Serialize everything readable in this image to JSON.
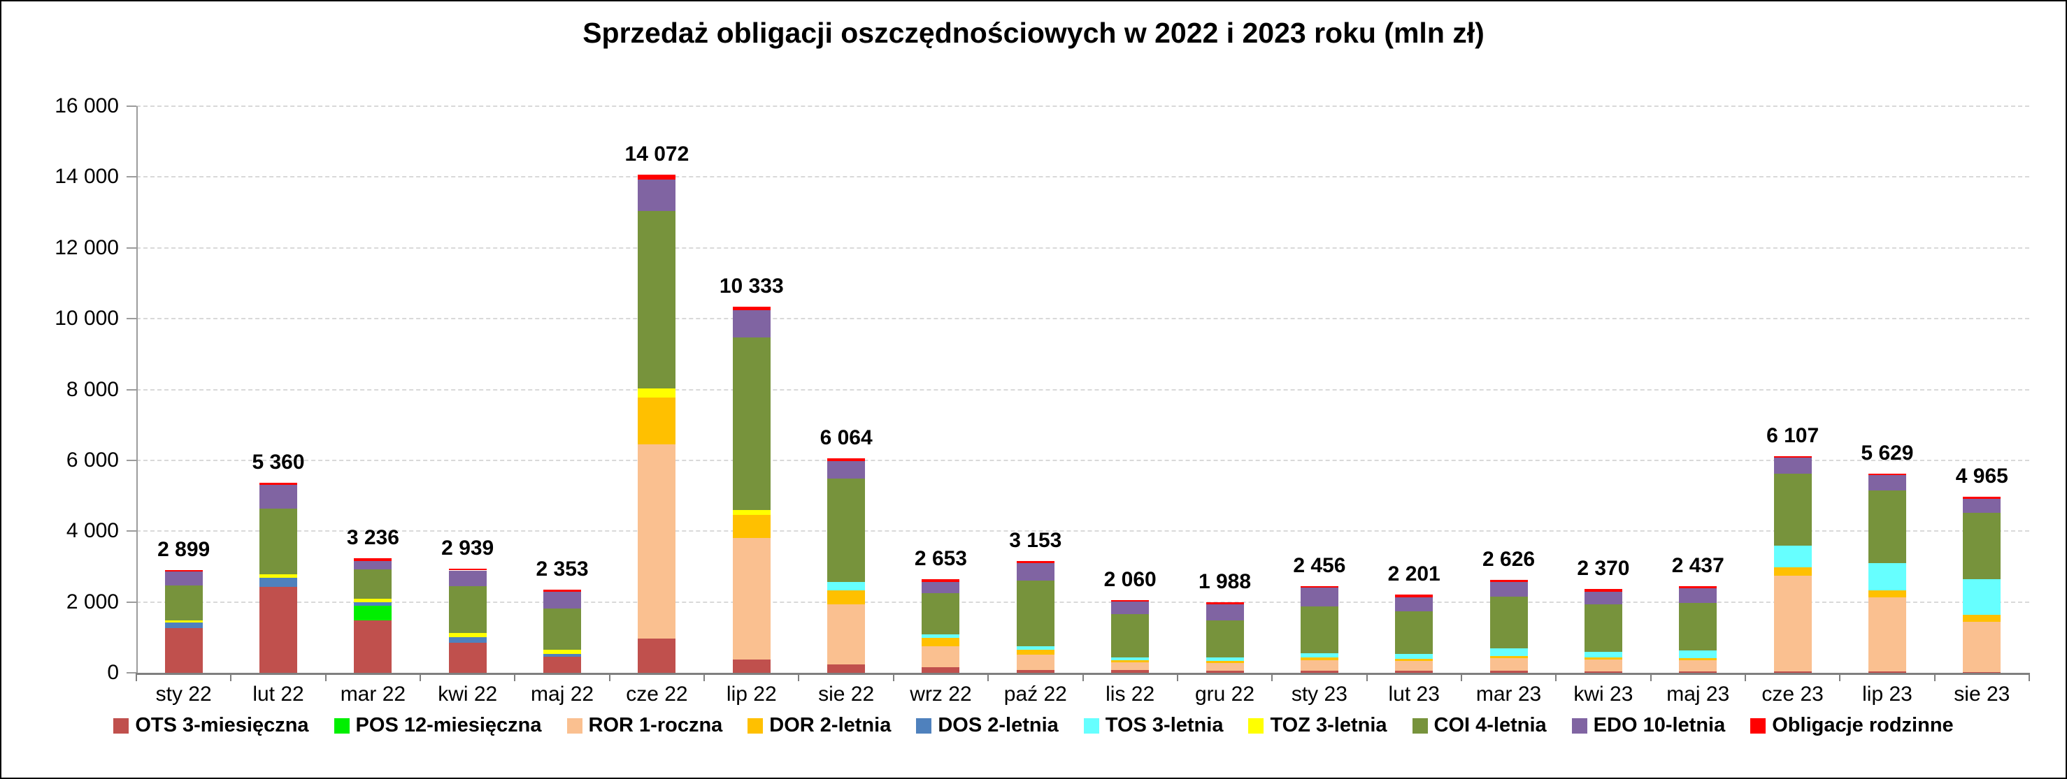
{
  "title": "Sprzedaż obligacji oszczędnościowych w 2022 i 2023 roku (mln zł)",
  "chart_data": {
    "type": "bar",
    "stacked": true,
    "title": "Sprzedaż obligacji oszczędnościowych w 2022 i 2023 roku (mln zł)",
    "xlabel": "",
    "ylabel": "",
    "ylim": [
      0,
      16000
    ],
    "y_tick_step": 2000,
    "y_tick_labels": [
      "0",
      "2 000",
      "4 000",
      "6 000",
      "8 000",
      "10 000",
      "12 000",
      "14 000",
      "16 000"
    ],
    "grid": "horizontal-dashed",
    "legend_position": "bottom",
    "categories": [
      "sty 22",
      "lut 22",
      "mar 22",
      "kwi 22",
      "maj 22",
      "cze 22",
      "lip 22",
      "sie 22",
      "wrz 22",
      "paź 22",
      "lis 22",
      "gru 22",
      "sty 23",
      "lut 23",
      "mar 23",
      "kwi 23",
      "maj 23",
      "cze 23",
      "lip 23",
      "sie 23"
    ],
    "totals": [
      2899,
      5360,
      3236,
      2939,
      2353,
      14072,
      10333,
      6064,
      2653,
      3153,
      2060,
      1988,
      2456,
      2201,
      2626,
      2370,
      2437,
      6107,
      5629,
      4965
    ],
    "total_labels": [
      "2 899",
      "5 360",
      "3 236",
      "2 939",
      "2 353",
      "14 072",
      "10 333",
      "6 064",
      "2 653",
      "3 153",
      "2 060",
      "1 988",
      "2 456",
      "2 201",
      "2 626",
      "2 370",
      "2 437",
      "6 107",
      "5 629",
      "4 965"
    ],
    "series": [
      {
        "name": "OTS 3-miesięczna",
        "color": "#c0504d",
        "values": [
          1270,
          2420,
          1480,
          851,
          446,
          960,
          381,
          230,
          164,
          85,
          85,
          65,
          65,
          65,
          55,
          40,
          35,
          30,
          30,
          25
        ]
      },
      {
        "name": "POS 12-miesięczna",
        "color": "#00ef00",
        "values": [
          0,
          0,
          414,
          0,
          0,
          0,
          0,
          0,
          0,
          0,
          0,
          0,
          0,
          0,
          0,
          0,
          0,
          0,
          0,
          0
        ]
      },
      {
        "name": "ROR 1-roczna",
        "color": "#fac090",
        "values": [
          0,
          0,
          0,
          0,
          0,
          5482,
          3426,
          1698,
          590,
          428,
          217,
          204,
          284,
          270,
          360,
          330,
          315,
          2705,
          2105,
          1425
        ]
      },
      {
        "name": "DOR 2-letnia",
        "color": "#ffc000",
        "values": [
          0,
          0,
          0,
          0,
          0,
          1340,
          652,
          407,
          230,
          145,
          47,
          66,
          79,
          66,
          66,
          60,
          60,
          245,
          197,
          185
        ]
      },
      {
        "name": "DOS 2-letnia",
        "color": "#4f81bd",
        "values": [
          145,
          270,
          99,
          152,
          85,
          0,
          0,
          0,
          0,
          0,
          0,
          0,
          0,
          0,
          0,
          0,
          0,
          0,
          0,
          0
        ]
      },
      {
        "name": "TOS 3-letnia",
        "color": "#66ffff",
        "values": [
          0,
          0,
          0,
          0,
          0,
          0,
          0,
          230,
          100,
          86,
          79,
          93,
          130,
          126,
          211,
          170,
          217,
          610,
          757,
          1000
        ]
      },
      {
        "name": "TOZ 3-letnia",
        "color": "#ffff00",
        "values": [
          65,
          93,
          98,
          118,
          124,
          240,
          138,
          0,
          0,
          0,
          0,
          0,
          0,
          0,
          0,
          0,
          0,
          0,
          0,
          0
        ]
      },
      {
        "name": "COI 4-letnia",
        "color": "#77933c",
        "values": [
          985,
          1860,
          823,
          1323,
          1154,
          5010,
          4873,
          2913,
          1170,
          1855,
          1223,
          1058,
          1316,
          1215,
          1466,
          1330,
          1348,
          2030,
          2058,
          1880
        ]
      },
      {
        "name": "EDO 10-letnia",
        "color": "#8064a2",
        "values": [
          400,
          657,
          248,
          446,
          485,
          890,
          770,
          494,
          310,
          493,
          361,
          455,
          527,
          395,
          414,
          355,
          414,
          447,
          442,
          407
        ]
      },
      {
        "name": "Obligacje rodzinne",
        "color": "#ff0000",
        "values": [
          34,
          60,
          74,
          49,
          59,
          150,
          93,
          92,
          89,
          61,
          48,
          47,
          55,
          64,
          54,
          85,
          48,
          40,
          40,
          43
        ]
      }
    ]
  }
}
